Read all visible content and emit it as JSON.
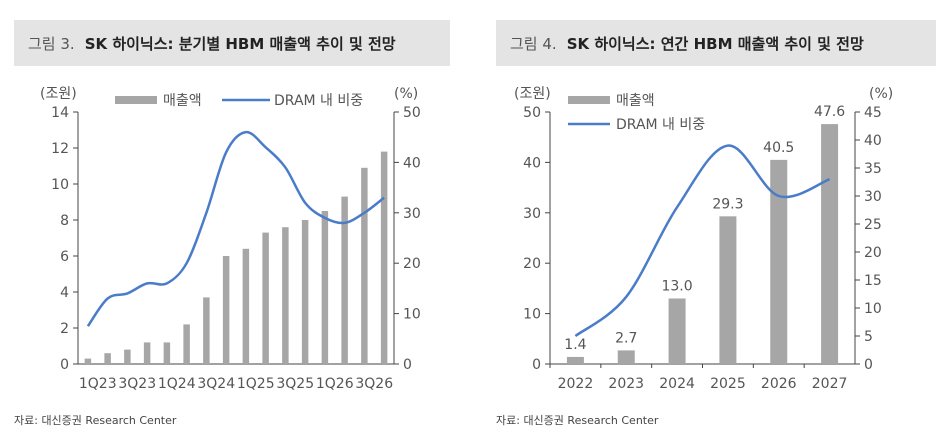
{
  "charts": [
    {
      "figure_label": "그림 3.",
      "title": "SK 하이닉스: 분기별 HBM 매출액 추이 및 전망",
      "source": "자료: 대신증권 Research Center",
      "left_unit": "(조원)",
      "right_unit": "(%)",
      "legend": {
        "bar": "매출액",
        "line": "DRAM 내 비중"
      }
    },
    {
      "figure_label": "그림 4.",
      "title": "SK 하이닉스: 연간 HBM 매출액 추이 및 전망",
      "source": "자료: 대신증권 Research Center",
      "left_unit": "(조원)",
      "right_unit": "(%)",
      "legend": {
        "bar": "매출액",
        "line": "DRAM 내 비중"
      }
    }
  ],
  "chart_data": [
    {
      "type": "bar",
      "x_tick_labels": [
        "1Q23",
        "3Q23",
        "1Q24",
        "3Q24",
        "1Q25",
        "3Q25",
        "1Q26",
        "3Q26"
      ],
      "series": [
        {
          "name": "매출액",
          "type": "bar",
          "axis": "left",
          "values": [
            0.3,
            0.6,
            0.8,
            1.2,
            1.2,
            2.2,
            3.7,
            6.0,
            6.4,
            7.3,
            7.6,
            8.0,
            8.5,
            9.3,
            10.9,
            11.8
          ]
        },
        {
          "name": "DRAM 내 비중",
          "type": "line",
          "axis": "right",
          "values": [
            7.5,
            13,
            14,
            16,
            16,
            20,
            30,
            42,
            46,
            43,
            39,
            32,
            29,
            28,
            30,
            33
          ]
        }
      ],
      "ylim_left": [
        0,
        14
      ],
      "yticks_left": [
        0,
        2,
        4,
        6,
        8,
        10,
        12,
        14
      ],
      "ylim_right": [
        0,
        50
      ],
      "yticks_right": [
        0,
        10,
        20,
        30,
        40,
        50
      ],
      "colors": {
        "bar": "#a6a6a6",
        "line": "#4a7cc9"
      },
      "legend_position": "top"
    },
    {
      "type": "bar",
      "categories": [
        "2022",
        "2023",
        "2024",
        "2025",
        "2026",
        "2027"
      ],
      "series": [
        {
          "name": "매출액",
          "type": "bar",
          "axis": "left",
          "values": [
            1.4,
            2.7,
            13.0,
            29.3,
            40.5,
            47.6
          ],
          "labels": [
            "1.4",
            "2.7",
            "13.0",
            "29.3",
            "40.5",
            "47.6"
          ]
        },
        {
          "name": "DRAM 내 비중",
          "type": "line",
          "axis": "right",
          "values": [
            5,
            12,
            28,
            39,
            30,
            33
          ]
        }
      ],
      "ylim_left": [
        0,
        50
      ],
      "yticks_left": [
        0,
        10,
        20,
        30,
        40,
        50
      ],
      "ylim_right": [
        0,
        45
      ],
      "yticks_right": [
        0,
        5,
        10,
        15,
        20,
        25,
        30,
        35,
        40,
        45
      ],
      "colors": {
        "bar": "#a6a6a6",
        "line": "#4a7cc9"
      },
      "legend_position": "top-left"
    }
  ]
}
